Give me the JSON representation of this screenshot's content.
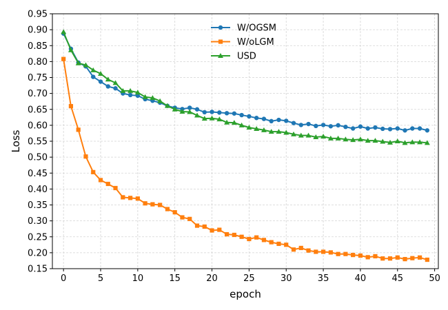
{
  "chart_data": {
    "type": "line",
    "title": "",
    "xlabel": "epoch",
    "ylabel": "Loss",
    "xlim": [
      -1.5,
      50.5
    ],
    "ylim": [
      0.15,
      0.95
    ],
    "xticks": [
      0,
      5,
      10,
      15,
      20,
      25,
      30,
      35,
      40,
      45,
      50
    ],
    "yticks": [
      0.15,
      0.2,
      0.25,
      0.3,
      0.35,
      0.4,
      0.45,
      0.5,
      0.55,
      0.6,
      0.65,
      0.7,
      0.75,
      0.8,
      0.85,
      0.9,
      0.95
    ],
    "grid": true,
    "legend_position": "top-center",
    "series": [
      {
        "name": "W/OGSM",
        "color": "#1f77b4",
        "marker": "circle",
        "x": [
          0,
          1,
          2,
          3,
          4,
          5,
          6,
          7,
          8,
          9,
          10,
          11,
          12,
          13,
          14,
          15,
          16,
          17,
          18,
          19,
          20,
          21,
          22,
          23,
          24,
          25,
          26,
          27,
          28,
          29,
          30,
          31,
          32,
          33,
          34,
          35,
          36,
          37,
          38,
          39,
          40,
          41,
          42,
          43,
          44,
          45,
          46,
          47,
          48,
          49
        ],
        "values": [
          0.888,
          0.84,
          0.797,
          0.785,
          0.752,
          0.737,
          0.722,
          0.716,
          0.7,
          0.695,
          0.693,
          0.682,
          0.677,
          0.671,
          0.661,
          0.655,
          0.651,
          0.655,
          0.65,
          0.641,
          0.642,
          0.64,
          0.638,
          0.637,
          0.632,
          0.628,
          0.623,
          0.62,
          0.613,
          0.617,
          0.614,
          0.607,
          0.601,
          0.604,
          0.598,
          0.601,
          0.597,
          0.6,
          0.595,
          0.59,
          0.596,
          0.59,
          0.593,
          0.589,
          0.588,
          0.59,
          0.584,
          0.59,
          0.59,
          0.584
        ]
      },
      {
        "name": "W/oLGM",
        "color": "#ff7f0e",
        "marker": "square",
        "x": [
          0,
          1,
          2,
          3,
          4,
          5,
          6,
          7,
          8,
          9,
          10,
          11,
          12,
          13,
          14,
          15,
          16,
          17,
          18,
          19,
          20,
          21,
          22,
          23,
          24,
          25,
          26,
          27,
          28,
          29,
          30,
          31,
          32,
          33,
          34,
          35,
          36,
          37,
          38,
          39,
          40,
          41,
          42,
          43,
          44,
          45,
          46,
          47,
          48,
          49
        ],
        "values": [
          0.808,
          0.66,
          0.586,
          0.502,
          0.453,
          0.428,
          0.416,
          0.403,
          0.374,
          0.372,
          0.37,
          0.355,
          0.352,
          0.35,
          0.337,
          0.327,
          0.311,
          0.306,
          0.285,
          0.282,
          0.27,
          0.272,
          0.258,
          0.256,
          0.25,
          0.243,
          0.248,
          0.24,
          0.233,
          0.228,
          0.225,
          0.21,
          0.215,
          0.207,
          0.203,
          0.203,
          0.201,
          0.196,
          0.196,
          0.193,
          0.191,
          0.186,
          0.189,
          0.182,
          0.182,
          0.185,
          0.18,
          0.183,
          0.185,
          0.178
        ]
      },
      {
        "name": "USD",
        "color": "#2ca02c",
        "marker": "triangle",
        "x": [
          0,
          1,
          2,
          3,
          4,
          5,
          6,
          7,
          8,
          9,
          10,
          11,
          12,
          13,
          14,
          15,
          16,
          17,
          18,
          19,
          20,
          21,
          22,
          23,
          24,
          25,
          26,
          27,
          28,
          29,
          30,
          31,
          32,
          33,
          34,
          35,
          36,
          37,
          38,
          39,
          40,
          41,
          42,
          43,
          44,
          45,
          46,
          47,
          48,
          49
        ],
        "values": [
          0.893,
          0.836,
          0.795,
          0.789,
          0.773,
          0.762,
          0.744,
          0.733,
          0.708,
          0.708,
          0.703,
          0.689,
          0.686,
          0.676,
          0.661,
          0.65,
          0.643,
          0.642,
          0.631,
          0.621,
          0.622,
          0.619,
          0.609,
          0.608,
          0.6,
          0.593,
          0.589,
          0.585,
          0.58,
          0.58,
          0.577,
          0.572,
          0.568,
          0.568,
          0.563,
          0.565,
          0.559,
          0.559,
          0.556,
          0.554,
          0.556,
          0.552,
          0.552,
          0.549,
          0.546,
          0.55,
          0.545,
          0.547,
          0.547,
          0.545
        ]
      }
    ]
  }
}
